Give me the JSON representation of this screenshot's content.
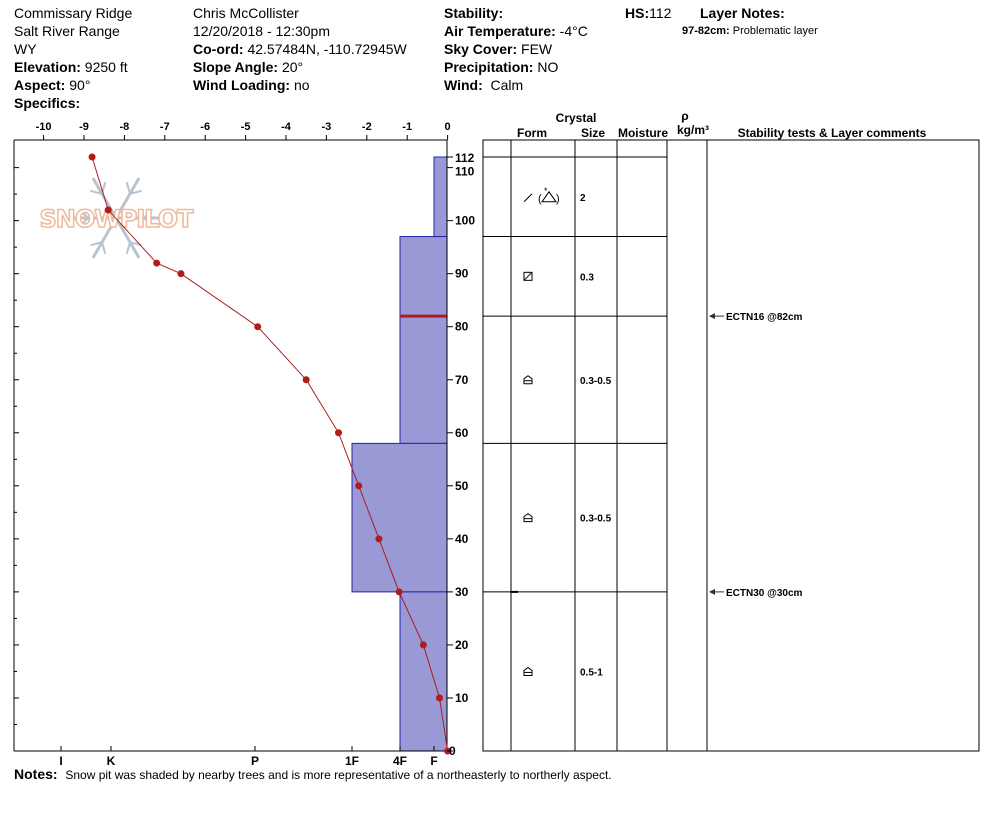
{
  "header": {
    "location": "Commissary Ridge",
    "range": "Salt River Range",
    "state": "WY",
    "elevation_label": "Elevation:",
    "elevation_value": "9250 ft",
    "aspect_label": "Aspect:",
    "aspect_value": "90°",
    "specifics_label": "Specifics:",
    "observer": "Chris McCollister",
    "datetime": "12/20/2018 - 12:30pm",
    "coord_label": "Co-ord:",
    "coord_value": "42.57484N, -110.72945W",
    "slope_label": "Slope Angle:",
    "slope_value": "20°",
    "wind_loading_label": "Wind Loading:",
    "wind_loading_value": "no",
    "stability_label": "Stability:",
    "air_temp_label": "Air Temperature:",
    "air_temp_value": "-4°C",
    "sky_label": "Sky Cover:",
    "sky_value": "FEW",
    "precip_label": "Precipitation:",
    "precip_value": "NO",
    "wind_label": "Wind:",
    "wind_value": "Calm",
    "hs_label": "HS:",
    "hs_value": "112",
    "layer_notes_label": "Layer Notes:",
    "layer_note_range": "97-82cm:",
    "layer_note_text": "Problematic layer"
  },
  "notes": {
    "label": "Notes:",
    "text": "Snow pit was shaded by nearby trees and is more representative of a northeasterly to northerly aspect."
  },
  "watermark": "SNOWPILOT",
  "table_headers": {
    "crystal": "Crystal",
    "form": "Form",
    "size": "Size",
    "moisture": "Moisture",
    "rho": "ρ",
    "density_unit": "kg/m³",
    "stability": "Stability tests & Layer comments"
  },
  "chart_data": {
    "type": "snow_profile",
    "temperature_axis": {
      "ticks": [
        -10,
        -9,
        -8,
        -7,
        -6,
        -5,
        -4,
        -3,
        -2,
        -1,
        0
      ],
      "range": [
        -10.3,
        0
      ]
    },
    "depth_axis": {
      "ticks": [
        0,
        10,
        20,
        30,
        40,
        50,
        60,
        70,
        80,
        90,
        100,
        110,
        112
      ],
      "range": [
        0,
        112
      ]
    },
    "hardness_axis": {
      "labels": [
        "I",
        "K",
        "P",
        "1F",
        "4F",
        "F"
      ]
    },
    "temperature_profile": [
      {
        "depth": 112,
        "temp": -8.8
      },
      {
        "depth": 102,
        "temp": -8.4
      },
      {
        "depth": 92,
        "temp": -7.2
      },
      {
        "depth": 90,
        "temp": -6.6
      },
      {
        "depth": 80,
        "temp": -4.7
      },
      {
        "depth": 70,
        "temp": -3.5
      },
      {
        "depth": 60,
        "temp": -2.7
      },
      {
        "depth": 50,
        "temp": -2.2
      },
      {
        "depth": 40,
        "temp": -1.7
      },
      {
        "depth": 30,
        "temp": -1.2
      },
      {
        "depth": 20,
        "temp": -0.6
      },
      {
        "depth": 10,
        "temp": -0.2
      },
      {
        "depth": 0,
        "temp": 0
      }
    ],
    "hardness_layers": [
      {
        "top": 112,
        "bottom": 97,
        "hardness": "F"
      },
      {
        "top": 97,
        "bottom": 58,
        "hardness": "4F"
      },
      {
        "top": 58,
        "bottom": 30,
        "hardness": "1F"
      },
      {
        "top": 30,
        "bottom": 0,
        "hardness": "4F"
      }
    ],
    "problem_layer_depth": 82,
    "layer_boundaries": [
      112,
      97,
      82,
      58,
      30
    ],
    "layers": [
      {
        "top": 112,
        "bottom": 97,
        "form_icon": "precipitation-particles-icon",
        "size": "2"
      },
      {
        "top": 97,
        "bottom": 82,
        "form_icon": "faceted-crystals-icon",
        "size": "0.3"
      },
      {
        "top": 82,
        "bottom": 58,
        "form_icon": "depth-hoar-icon",
        "size": "0.3-0.5"
      },
      {
        "top": 58,
        "bottom": 30,
        "form_icon": "depth-hoar-icon",
        "size": "0.3-0.5"
      },
      {
        "top": 30,
        "bottom": 0,
        "form_icon": "depth-hoar-icon",
        "size": "0.5-1"
      }
    ],
    "stability_tests": [
      {
        "depth": 82,
        "label": "ECTN16 @82cm"
      },
      {
        "depth": 30,
        "label": "ECTN30 @30cm"
      }
    ],
    "colors": {
      "hardness_fill": "#9999d6",
      "hardness_stroke": "#2222aa",
      "temperature": "#b01c1c",
      "problem_layer": "#b01c1c"
    }
  }
}
